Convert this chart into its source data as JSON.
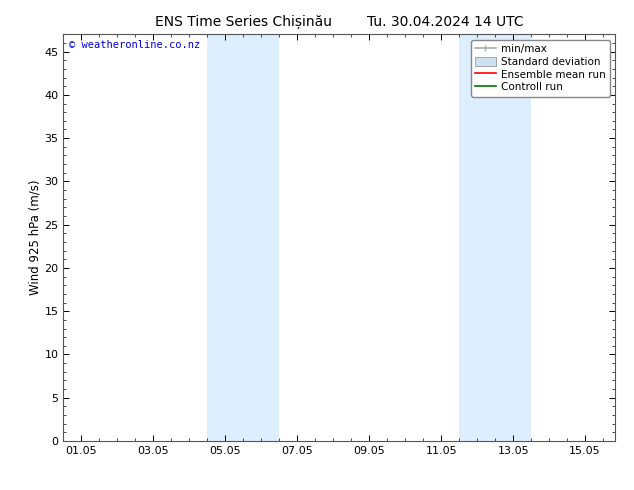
{
  "title_left": "ENS Time Series Chișinău",
  "title_right": "Tu. 30.04.2024 14 UTC",
  "ylabel": "Wind 925 hPa (m/s)",
  "watermark": "© weatheronline.co.nz",
  "watermark_color": "#0000dd",
  "xlim_start": -0.5,
  "xlim_end": 14.83,
  "ylim": [
    0,
    47
  ],
  "yticks": [
    0,
    5,
    10,
    15,
    20,
    25,
    30,
    35,
    40,
    45
  ],
  "xtick_labels": [
    "01.05",
    "03.05",
    "05.05",
    "07.05",
    "09.05",
    "11.05",
    "13.05",
    "15.05"
  ],
  "xtick_positions": [
    0,
    2,
    4,
    6,
    8,
    10,
    12,
    14
  ],
  "shaded_regions": [
    {
      "xmin": 3.5,
      "xmax": 5.5,
      "color": "#ddeeff"
    },
    {
      "xmin": 10.5,
      "xmax": 12.5,
      "color": "#ddeeff"
    }
  ],
  "legend_items": [
    {
      "label": "min/max",
      "color": "#aaaaaa",
      "lw": 1.2,
      "ls": "-"
    },
    {
      "label": "Standard deviation",
      "color": "#cce0f0",
      "lw": 6,
      "ls": "-"
    },
    {
      "label": "Ensemble mean run",
      "color": "#ff0000",
      "lw": 1.2,
      "ls": "-"
    },
    {
      "label": "Controll run",
      "color": "#007700",
      "lw": 1.2,
      "ls": "-"
    }
  ],
  "bg_color": "#ffffff",
  "plot_bg_color": "#ffffff",
  "border_color": "#555555",
  "title_fontsize": 10,
  "axis_label_fontsize": 8.5,
  "tick_fontsize": 8,
  "watermark_fontsize": 7.5,
  "legend_fontsize": 7.5
}
